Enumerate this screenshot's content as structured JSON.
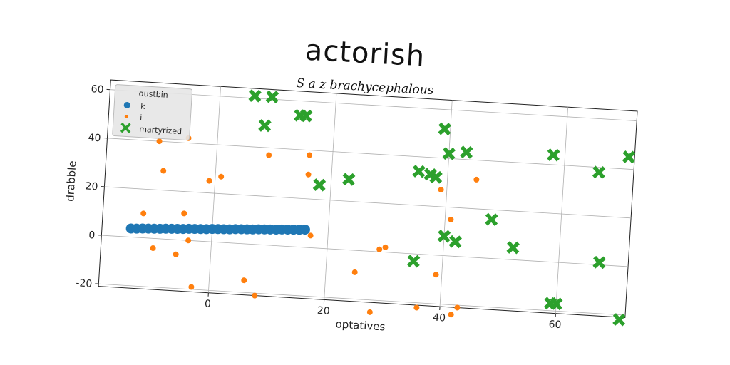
{
  "chart_data": {
    "type": "scatter",
    "title": "actorish",
    "subtitle": "S a z brachycephalous",
    "xlabel": "optatives",
    "ylabel": "drabble",
    "xlim": [
      -19,
      72
    ],
    "ylim": [
      -21,
      64
    ],
    "xticks": [
      0,
      20,
      40,
      60
    ],
    "yticks": [
      -20,
      0,
      20,
      40,
      60
    ],
    "grid": true,
    "legend": {
      "title": "dustbin",
      "position": "top-left"
    },
    "series": [
      {
        "name": "k",
        "marker": "circle",
        "color": "#1f77b4",
        "x": [
          -14,
          -13,
          -12,
          -11,
          -10,
          -9,
          -8,
          -7,
          -6,
          -5,
          -4,
          -3,
          -2,
          -1,
          0,
          1,
          2,
          3,
          4,
          5,
          6,
          7,
          8,
          9,
          10,
          11,
          12,
          13,
          14,
          15,
          16
        ],
        "y": [
          3.5,
          3.6,
          3.8,
          3.9,
          4.0,
          4.1,
          4.3,
          4.4,
          4.5,
          4.6,
          4.8,
          4.9,
          5.0,
          5.1,
          5.3,
          5.4,
          5.5,
          5.6,
          5.8,
          5.9,
          6.0,
          6.1,
          6.3,
          6.4,
          6.5,
          6.6,
          6.8,
          6.9,
          7.0,
          7.1,
          7.3
        ]
      },
      {
        "name": "i",
        "marker": "small-circle",
        "color": "#ff7f0e",
        "x": [
          -10,
          -9,
          -5,
          -12,
          -5,
          -10,
          -6,
          -3,
          -4,
          -1,
          1,
          9,
          16,
          16,
          17,
          6,
          8,
          25,
          29,
          30,
          36,
          39,
          39,
          41,
          42,
          43,
          45,
          28
        ],
        "y": [
          40,
          28,
          42,
          10,
          11,
          -4,
          -6,
          -19,
          0,
          25,
          27,
          37,
          38,
          30,
          5,
          -15,
          -21,
          -9,
          1,
          2,
          -22,
          27,
          -8,
          15,
          -24,
          -21,
          32,
          -25
        ]
      },
      {
        "name": "martyrized",
        "marker": "x-thick",
        "color": "#2ca02c",
        "x": [
          6,
          9,
          8,
          14,
          15,
          18,
          23,
          35,
          37,
          38,
          39,
          40,
          43,
          40,
          42,
          48,
          52,
          35,
          58,
          59,
          60,
          66,
          67,
          71,
          71
        ],
        "y": [
          61,
          61,
          49,
          54,
          54,
          26,
          29,
          34,
          33,
          32,
          52,
          42,
          43,
          8,
          6,
          16,
          5,
          -3,
          44,
          -17,
          -17,
          38,
          1,
          45,
          -22
        ]
      }
    ]
  }
}
